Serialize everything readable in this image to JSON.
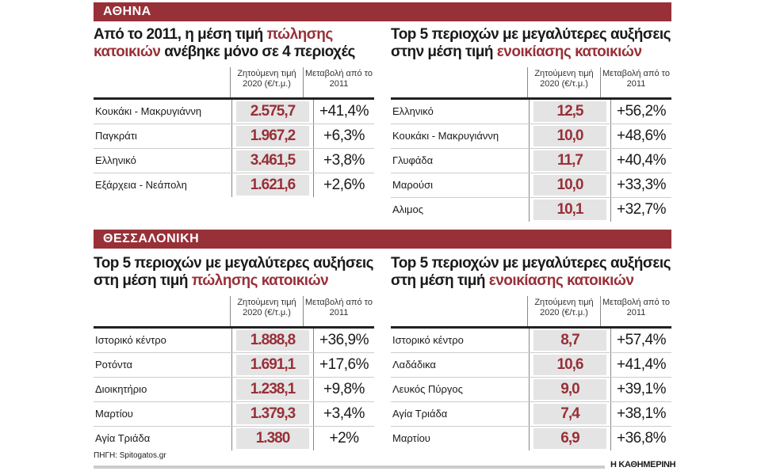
{
  "athens": {
    "label": "ΑΘΗΝΑ",
    "sale": {
      "title_pre": "Από το 2011, η μέση τιμή ",
      "title_hl": "πώλησης κατοικιών",
      "title_post": " ανέβηκε μόνο σε 4 περιοχές",
      "col_price": "Ζητούμενη τιμή 2020 (€/τ.μ.)",
      "col_change": "Μεταβολή από το 2011",
      "rows": [
        {
          "area": "Κουκάκι - Μακρυγιάννη",
          "price": "2.575,7",
          "change": "+41,4%"
        },
        {
          "area": "Παγκράτι",
          "price": "1.967,2",
          "change": "+6,3%"
        },
        {
          "area": "Ελληνικό",
          "price": "3.461,5",
          "change": "+3,8%"
        },
        {
          "area": "Εξάρχεια - Νεάπολη",
          "price": "1.621,6",
          "change": "+2,6%"
        }
      ]
    },
    "rent": {
      "title_pre": "Top 5 περιοχών με μεγαλύτερες αυξήσεις στην μέση τιμή ",
      "title_hl": "ενοικίασης κατοικιών",
      "title_post": "",
      "col_price": "Ζητούμενη τιμή 2020 (€/τ.μ.)",
      "col_change": "Μεταβολή από το 2011",
      "rows": [
        {
          "area": "Ελληνικό",
          "price": "12,5",
          "change": "+56,2%"
        },
        {
          "area": "Κουκάκι - Μακρυγιάννη",
          "price": "10,0",
          "change": "+48,6%"
        },
        {
          "area": "Γλυφάδα",
          "price": "11,7",
          "change": "+40,4%"
        },
        {
          "area": "Μαρούσι",
          "price": "10,0",
          "change": "+33,3%"
        },
        {
          "area": "Αλιμος",
          "price": "10,1",
          "change": "+32,7%"
        }
      ]
    }
  },
  "thessaloniki": {
    "label": "ΘΕΣΣΑΛΟΝΙΚΗ",
    "sale": {
      "title_pre": "Top 5 περιοχών με μεγαλύτερες αυξήσεις στη μέση τιμή ",
      "title_hl": "πώλησης κατοικιών",
      "title_post": "",
      "col_price": "Ζητούμενη τιμή 2020 (€/τ.μ.)",
      "col_change": "Μεταβολή από το 2011",
      "rows": [
        {
          "area": "Ιστορικό κέντρο",
          "price": "1.888,8",
          "change": "+36,9%"
        },
        {
          "area": "Ροτόντα",
          "price": "1.691,1",
          "change": "+17,6%"
        },
        {
          "area": "Διοικητήριο",
          "price": "1.238,1",
          "change": "+9,8%"
        },
        {
          "area": "Μαρτίου",
          "price": "1.379,3",
          "change": "+3,4%"
        },
        {
          "area": "Αγία Τριάδα",
          "price": "1.380",
          "change": "+2%"
        }
      ]
    },
    "rent": {
      "title_pre": "Top 5 περιοχών με μεγαλύτερες αυξήσεις στη μέση τιμή ",
      "title_hl": "ενοικίασης κατοικιών",
      "title_post": "",
      "col_price": "Ζητούμενη τιμή 2020 (€/τ.μ.)",
      "col_change": "Μεταβολή από το 2011",
      "rows": [
        {
          "area": "Ιστορικό κέντρο",
          "price": "8,7",
          "change": "+57,4%"
        },
        {
          "area": "Λαδάδικα",
          "price": "10,6",
          "change": "+41,4%"
        },
        {
          "area": "Λευκός Πύργος",
          "price": "9,0",
          "change": "+39,1%"
        },
        {
          "area": "Αγία Τριάδα",
          "price": "7,4",
          "change": "+38,1%"
        },
        {
          "area": "Μαρτίου",
          "price": "6,9",
          "change": "+36,8%"
        }
      ]
    }
  },
  "source": "ΠΗΓΗ: Spitogatos.gr",
  "brand": "Η ΚΑΘΗΜΕΡΙΝΗ",
  "colors": {
    "accent": "#983038",
    "cell_bg": "#e4e4e4"
  }
}
